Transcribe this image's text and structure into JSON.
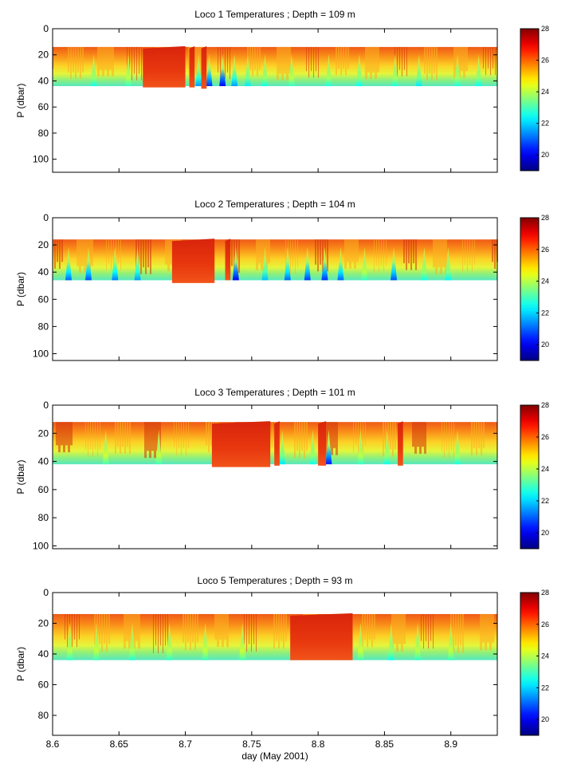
{
  "chart_data": [
    {
      "type": "heatmap",
      "title": "Loco 1 Temperatures ; Depth = 109 m",
      "ylabel": "P (dbar)",
      "xlabel": "",
      "xlim": [
        8.6,
        8.935
      ],
      "ylim": [
        110,
        0
      ],
      "yticks": [
        0,
        20,
        40,
        60,
        80,
        100
      ],
      "xticks": [
        8.6,
        8.65,
        8.7,
        8.75,
        8.8,
        8.85,
        8.9
      ],
      "xtick_labels": [],
      "colorbar": {
        "range": [
          19,
          28
        ],
        "ticks": [
          "20",
          "22",
          "24",
          "26",
          "28"
        ]
      },
      "band": {
        "top_dbar": 14,
        "bottom_dbar": 44
      },
      "warm_events": [
        {
          "from": 8.668,
          "to": 8.7,
          "deep_dbar": 45
        },
        {
          "from": 8.703,
          "to": 8.707,
          "deep_dbar": 45
        },
        {
          "from": 8.712,
          "to": 8.716,
          "deep_dbar": 46
        }
      ],
      "cold_spikes": [
        {
          "day": 8.631,
          "min_temp": 22.5
        },
        {
          "day": 8.657,
          "min_temp": 22.8
        },
        {
          "day": 8.71,
          "min_temp": 21.5
        },
        {
          "day": 8.718,
          "min_temp": 20.5
        },
        {
          "day": 8.728,
          "min_temp": 20.0
        },
        {
          "day": 8.737,
          "min_temp": 21.5
        },
        {
          "day": 8.747,
          "min_temp": 22.2
        },
        {
          "day": 8.76,
          "min_temp": 22.5
        },
        {
          "day": 8.78,
          "min_temp": 22.8
        },
        {
          "day": 8.808,
          "min_temp": 22.6
        },
        {
          "day": 8.831,
          "min_temp": 22.4
        },
        {
          "day": 8.858,
          "min_temp": 22.6
        },
        {
          "day": 8.876,
          "min_temp": 22.2
        },
        {
          "day": 8.905,
          "min_temp": 22.6
        },
        {
          "day": 8.921,
          "min_temp": 22.4
        }
      ]
    },
    {
      "type": "heatmap",
      "title": "Loco 2 Temperatures ; Depth = 104 m",
      "ylabel": "P (dbar)",
      "xlabel": "",
      "xlim": [
        8.6,
        8.935
      ],
      "ylim": [
        105,
        0
      ],
      "yticks": [
        0,
        20,
        40,
        60,
        80,
        100
      ],
      "xticks": [
        8.6,
        8.65,
        8.7,
        8.75,
        8.8,
        8.85,
        8.9
      ],
      "xtick_labels": [],
      "colorbar": {
        "range": [
          19,
          28
        ],
        "ticks": [
          "20",
          "22",
          "24",
          "26",
          "28"
        ]
      },
      "band": {
        "top_dbar": 16,
        "bottom_dbar": 46
      },
      "warm_events": [
        {
          "from": 8.69,
          "to": 8.722,
          "deep_dbar": 48
        },
        {
          "from": 8.73,
          "to": 8.734,
          "deep_dbar": 46
        }
      ],
      "cold_spikes": [
        {
          "day": 8.612,
          "min_temp": 21.0
        },
        {
          "day": 8.627,
          "min_temp": 20.8
        },
        {
          "day": 8.647,
          "min_temp": 21.2
        },
        {
          "day": 8.664,
          "min_temp": 21.5
        },
        {
          "day": 8.738,
          "min_temp": 20.0
        },
        {
          "day": 8.76,
          "min_temp": 21.8
        },
        {
          "day": 8.777,
          "min_temp": 21.0
        },
        {
          "day": 8.792,
          "min_temp": 20.6
        },
        {
          "day": 8.805,
          "min_temp": 20.5
        },
        {
          "day": 8.817,
          "min_temp": 21.0
        },
        {
          "day": 8.835,
          "min_temp": 22.8
        },
        {
          "day": 8.857,
          "min_temp": 20.8
        },
        {
          "day": 8.88,
          "min_temp": 22.5
        },
        {
          "day": 8.898,
          "min_temp": 22.3
        }
      ]
    },
    {
      "type": "heatmap",
      "title": "Loco 3 Temperatures ; Depth = 101 m",
      "ylabel": "P (dbar)",
      "xlabel": "",
      "xlim": [
        8.6,
        8.935
      ],
      "ylim": [
        102,
        0
      ],
      "yticks": [
        0,
        20,
        40,
        60,
        80,
        100
      ],
      "xticks": [
        8.6,
        8.65,
        8.7,
        8.75,
        8.8,
        8.85,
        8.9
      ],
      "xtick_labels": [],
      "colorbar": {
        "range": [
          19,
          28
        ],
        "ticks": [
          "20",
          "22",
          "24",
          "26",
          "28"
        ]
      },
      "band": {
        "top_dbar": 12,
        "bottom_dbar": 42
      },
      "warm_events": [
        {
          "from": 8.72,
          "to": 8.764,
          "deep_dbar": 44
        },
        {
          "from": 8.767,
          "to": 8.771,
          "deep_dbar": 43
        },
        {
          "from": 8.8,
          "to": 8.806,
          "deep_dbar": 43
        },
        {
          "from": 8.86,
          "to": 8.864,
          "deep_dbar": 43
        }
      ],
      "cold_spikes": [
        {
          "day": 8.64,
          "min_temp": 23.0
        },
        {
          "day": 8.68,
          "min_temp": 22.9
        },
        {
          "day": 8.773,
          "min_temp": 22.2
        },
        {
          "day": 8.796,
          "min_temp": 22.5
        },
        {
          "day": 8.808,
          "min_temp": 20.3
        },
        {
          "day": 8.832,
          "min_temp": 22.8
        },
        {
          "day": 8.852,
          "min_temp": 22.5
        },
        {
          "day": 8.905,
          "min_temp": 22.6
        }
      ]
    },
    {
      "type": "heatmap",
      "title": "Loco 5 Temperatures ; Depth = 93 m",
      "ylabel": "P (dbar)",
      "xlabel": "day (May 2001)",
      "xlim": [
        8.6,
        8.935
      ],
      "ylim": [
        93,
        0
      ],
      "yticks": [
        0,
        20,
        40,
        60,
        80
      ],
      "xticks": [
        8.6,
        8.65,
        8.7,
        8.75,
        8.8,
        8.85,
        8.9
      ],
      "xtick_labels": [
        "8.6",
        "8.65",
        "8.7",
        "8.75",
        "8.8",
        "8.85",
        "8.9"
      ],
      "colorbar": {
        "range": [
          19,
          28
        ],
        "ticks": [
          "20",
          "22",
          "24",
          "26",
          "28"
        ]
      },
      "band": {
        "top_dbar": 14,
        "bottom_dbar": 44
      },
      "warm_events": [
        {
          "from": 8.779,
          "to": 8.826,
          "deep_dbar": 44
        }
      ],
      "cold_spikes": [
        {
          "day": 8.613,
          "min_temp": 22.8
        },
        {
          "day": 8.633,
          "min_temp": 22.9
        },
        {
          "day": 8.66,
          "min_temp": 22.7
        },
        {
          "day": 8.688,
          "min_temp": 22.8
        },
        {
          "day": 8.715,
          "min_temp": 22.9
        },
        {
          "day": 8.743,
          "min_temp": 23.0
        },
        {
          "day": 8.832,
          "min_temp": 23.0
        },
        {
          "day": 8.855,
          "min_temp": 22.5
        },
        {
          "day": 8.875,
          "min_temp": 22.8
        },
        {
          "day": 8.9,
          "min_temp": 22.9
        }
      ]
    }
  ]
}
